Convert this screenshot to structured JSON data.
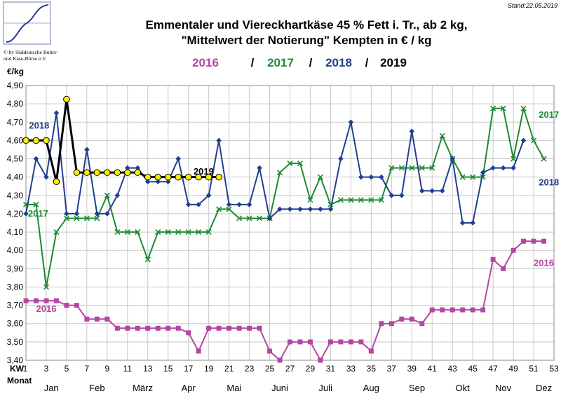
{
  "stand": "Stand:22.05.2019",
  "copyright_line1": "© by Süddeutsche Butter-",
  "copyright_line2": "und Käse-Börse e.V.",
  "unit_label": "€/kg",
  "axis_kw_label": "KW",
  "axis_monat_label": "Monat",
  "legend": {
    "y2016": "2016",
    "sep1": "/",
    "y2017": "2017",
    "sep2": "/",
    "y2018": "2018",
    "sep3": "/",
    "y2019": "2019"
  },
  "colors": {
    "s2016": "#b347a3",
    "s2017": "#1e8a32",
    "s2018": "#213f8f",
    "s2019": "#000000",
    "marker2019": "#ffee00",
    "grid": "#c8c8c8"
  },
  "chart_data": {
    "type": "line",
    "title": "Emmentaler und Viereckhartkäse 45 % Fett i. Tr., ab 2 kg,",
    "subtitle": "\"Mittelwert der Notierung\" Kempten in € / kg",
    "xlabel": "KW",
    "ylabel": "€/kg",
    "xlim": [
      1,
      53
    ],
    "ylim": [
      3.4,
      4.9
    ],
    "x_ticks": [
      1,
      3,
      5,
      7,
      9,
      11,
      13,
      15,
      17,
      19,
      21,
      23,
      25,
      27,
      29,
      31,
      33,
      35,
      37,
      39,
      41,
      43,
      45,
      47,
      49,
      51,
      53
    ],
    "y_ticks": [
      "3,40",
      "3,50",
      "3,60",
      "3,70",
      "3,80",
      "3,90",
      "4,00",
      "4,10",
      "4,20",
      "4,30",
      "4,40",
      "4,50",
      "4,60",
      "4,70",
      "4,80",
      "4,90"
    ],
    "months": [
      {
        "label": "Jan",
        "kw": 3.5
      },
      {
        "label": "Feb",
        "kw": 8
      },
      {
        "label": "März",
        "kw": 12.5
      },
      {
        "label": "Apr",
        "kw": 17
      },
      {
        "label": "Mai",
        "kw": 21.5
      },
      {
        "label": "Juni",
        "kw": 26
      },
      {
        "label": "Juli",
        "kw": 30.5
      },
      {
        "label": "Aug",
        "kw": 35
      },
      {
        "label": "Sep",
        "kw": 39.5
      },
      {
        "label": "Okt",
        "kw": 44
      },
      {
        "label": "Nov",
        "kw": 48
      },
      {
        "label": "Dez",
        "kw": 52
      }
    ],
    "series": [
      {
        "name": "2016",
        "color_key": "s2016",
        "marker": "square",
        "label_positions": [
          {
            "kw": 3,
            "v": 3.68
          },
          {
            "kw": 52,
            "v": 3.93
          }
        ],
        "x": [
          1,
          2,
          3,
          4,
          5,
          6,
          7,
          8,
          9,
          10,
          11,
          12,
          13,
          14,
          15,
          16,
          17,
          18,
          19,
          20,
          21,
          22,
          23,
          24,
          25,
          26,
          27,
          28,
          29,
          30,
          31,
          32,
          33,
          34,
          35,
          36,
          37,
          38,
          39,
          40,
          41,
          42,
          43,
          44,
          45,
          46,
          47,
          48,
          49,
          50,
          51,
          52
        ],
        "values": [
          3.725,
          3.725,
          3.725,
          3.725,
          3.7,
          3.7,
          3.625,
          3.625,
          3.625,
          3.575,
          3.575,
          3.575,
          3.575,
          3.575,
          3.575,
          3.575,
          3.55,
          3.45,
          3.575,
          3.575,
          3.575,
          3.575,
          3.575,
          3.575,
          3.45,
          3.4,
          3.5,
          3.5,
          3.5,
          3.4,
          3.5,
          3.5,
          3.5,
          3.5,
          3.45,
          3.6,
          3.6,
          3.625,
          3.625,
          3.6,
          3.675,
          3.675,
          3.675,
          3.675,
          3.675,
          3.675,
          3.95,
          3.9,
          4.0,
          4.05,
          4.05,
          4.05
        ]
      },
      {
        "name": "2017",
        "color_key": "s2017",
        "marker": "cross",
        "label_positions": [
          {
            "kw": 2.2,
            "v": 4.2
          },
          {
            "kw": 52.5,
            "v": 4.74
          }
        ],
        "x": [
          1,
          2,
          3,
          4,
          5,
          6,
          7,
          8,
          9,
          10,
          11,
          12,
          13,
          14,
          15,
          16,
          17,
          18,
          19,
          20,
          21,
          22,
          23,
          24,
          25,
          26,
          27,
          28,
          29,
          30,
          31,
          32,
          33,
          34,
          35,
          36,
          37,
          38,
          39,
          40,
          41,
          42,
          43,
          44,
          45,
          46,
          47,
          48,
          49,
          50,
          51,
          52
        ],
        "values": [
          4.25,
          4.25,
          3.8,
          4.1,
          4.175,
          4.175,
          4.175,
          4.175,
          4.3,
          4.1,
          4.1,
          4.1,
          3.95,
          4.1,
          4.1,
          4.1,
          4.1,
          4.1,
          4.1,
          4.225,
          4.225,
          4.175,
          4.175,
          4.175,
          4.175,
          4.425,
          4.475,
          4.475,
          4.275,
          4.4,
          4.25,
          4.275,
          4.275,
          4.275,
          4.275,
          4.275,
          4.45,
          4.45,
          4.45,
          4.45,
          4.45,
          4.625,
          4.5,
          4.4,
          4.4,
          4.4,
          4.775,
          4.775,
          4.5,
          4.775,
          4.6,
          4.5
        ]
      },
      {
        "name": "2018",
        "color_key": "s2018",
        "marker": "diamond",
        "label_positions": [
          {
            "kw": 2.3,
            "v": 4.68
          },
          {
            "kw": 52.5,
            "v": 4.37
          }
        ],
        "x": [
          1,
          2,
          3,
          4,
          5,
          6,
          7,
          8,
          9,
          10,
          11,
          12,
          13,
          14,
          15,
          16,
          17,
          18,
          19,
          20,
          21,
          22,
          23,
          24,
          25,
          26,
          27,
          28,
          29,
          30,
          31,
          32,
          33,
          34,
          35,
          36,
          37,
          38,
          39,
          40,
          41,
          42,
          43,
          44,
          45,
          46,
          47,
          48,
          49,
          50
        ],
        "values": [
          4.2,
          4.5,
          4.4,
          4.75,
          4.2,
          4.2,
          4.55,
          4.2,
          4.2,
          4.3,
          4.45,
          4.45,
          4.375,
          4.375,
          4.375,
          4.5,
          4.25,
          4.25,
          4.3,
          4.6,
          4.25,
          4.25,
          4.25,
          4.45,
          4.175,
          4.225,
          4.225,
          4.225,
          4.225,
          4.225,
          4.225,
          4.5,
          4.7,
          4.4,
          4.4,
          4.4,
          4.3,
          4.3,
          4.65,
          4.325,
          4.325,
          4.325,
          4.5,
          4.15,
          4.15,
          4.425,
          4.45,
          4.45,
          4.45,
          4.6
        ]
      },
      {
        "name": "2019",
        "color_key": "s2019",
        "marker": "circle",
        "label_positions": [
          {
            "kw": 18.5,
            "v": 4.43
          }
        ],
        "x": [
          1,
          2,
          3,
          4,
          5,
          6,
          7,
          8,
          9,
          10,
          11,
          12,
          13,
          14,
          15,
          16,
          17,
          18,
          19,
          20
        ],
        "values": [
          4.6,
          4.6,
          4.6,
          4.375,
          4.825,
          4.425,
          4.425,
          4.425,
          4.425,
          4.425,
          4.425,
          4.425,
          4.4,
          4.4,
          4.4,
          4.4,
          4.4,
          4.4,
          4.4,
          4.4
        ]
      }
    ]
  }
}
